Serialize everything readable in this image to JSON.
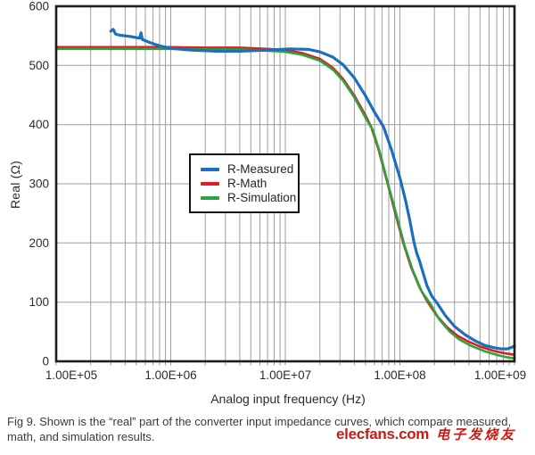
{
  "figure": {
    "caption": "Fig 9. Shown is the “real” part of the converter input impedance curves, which compare measured, math, and simulation results.",
    "watermark": {
      "brand": "elecfans.com",
      "cjk": "电子发烧友",
      "color": "#C81B15"
    }
  },
  "chart_data": {
    "type": "line",
    "title": "",
    "xlabel": "Analog input frequency (Hz)",
    "ylabel": "Real (Ω)",
    "x_scale": "log",
    "xlim": [
      100000.0,
      1000000000.0
    ],
    "ylim": [
      0,
      600
    ],
    "x_tick_labels": [
      "1.00E+05",
      "1.00E+06",
      "1.00E+07",
      "1.00E+08",
      "1.00E+09"
    ],
    "y_ticks": [
      0,
      100,
      200,
      300,
      400,
      500,
      600
    ],
    "grid": true,
    "grid_color": "#9E9E9E",
    "frame_color": "#1C1C1C",
    "legend_position": "center",
    "series": [
      {
        "name": "R-Measured",
        "color": "#1B6FBC",
        "points": [
          [
            300000.0,
            558
          ],
          [
            315000.0,
            561
          ],
          [
            330000.0,
            553
          ],
          [
            360000.0,
            551
          ],
          [
            440000.0,
            549
          ],
          [
            535000.0,
            546
          ],
          [
            550000.0,
            555
          ],
          [
            565000.0,
            544
          ],
          [
            650000.0,
            539
          ],
          [
            800000.0,
            533
          ],
          [
            1000000.0,
            529
          ],
          [
            1500000.0,
            526
          ],
          [
            2500000.0,
            524
          ],
          [
            4000000.0,
            524
          ],
          [
            7000000.0,
            526
          ],
          [
            11000000.0,
            528
          ],
          [
            16000000.0,
            527
          ],
          [
            20000000.0,
            523
          ],
          [
            26000000.0,
            514
          ],
          [
            32000000.0,
            501
          ],
          [
            40000000.0,
            479
          ],
          [
            50000000.0,
            449
          ],
          [
            60000000.0,
            421
          ],
          [
            72000000.0,
            396
          ],
          [
            85000000.0,
            356
          ],
          [
            100000000.0,
            310
          ],
          [
            112000000.0,
            272
          ],
          [
            122000000.0,
            238
          ],
          [
            132000000.0,
            203
          ],
          [
            140000000.0,
            183
          ],
          [
            148000000.0,
            170
          ],
          [
            158000000.0,
            152
          ],
          [
            172000000.0,
            128
          ],
          [
            190000000.0,
            110
          ],
          [
            210000000.0,
            99
          ],
          [
            250000000.0,
            77
          ],
          [
            300000000.0,
            59
          ],
          [
            370000000.0,
            45
          ],
          [
            450000000.0,
            35
          ],
          [
            550000000.0,
            27
          ],
          [
            660000000.0,
            23
          ],
          [
            760000000.0,
            21
          ],
          [
            860000000.0,
            21
          ],
          [
            930000000.0,
            23
          ],
          [
            1000000000.0,
            26
          ]
        ]
      },
      {
        "name": "R-Math",
        "color": "#E01D23",
        "points": [
          [
            100000.0,
            531
          ],
          [
            500000.0,
            531
          ],
          [
            1000000.0,
            531
          ],
          [
            2000000.0,
            530
          ],
          [
            4000000.0,
            530
          ],
          [
            7000000.0,
            528
          ],
          [
            10000000.0,
            526
          ],
          [
            14000000.0,
            521
          ],
          [
            20000000.0,
            511
          ],
          [
            26000000.0,
            496
          ],
          [
            32000000.0,
            477
          ],
          [
            40000000.0,
            449
          ],
          [
            50000000.0,
            416
          ],
          [
            56000000.0,
            397
          ],
          [
            65000000.0,
            358
          ],
          [
            78000000.0,
            301
          ],
          [
            90000000.0,
            254
          ],
          [
            107000000.0,
            200
          ],
          [
            125000000.0,
            159
          ],
          [
            150000000.0,
            123
          ],
          [
            175000000.0,
            100
          ],
          [
            210000000.0,
            77
          ],
          [
            260000000.0,
            57
          ],
          [
            320000000.0,
            43
          ],
          [
            400000000.0,
            33
          ],
          [
            500000000.0,
            25
          ],
          [
            650000000.0,
            18
          ],
          [
            800000000.0,
            14
          ],
          [
            1000000000.0,
            11
          ]
        ]
      },
      {
        "name": "R-Simulation",
        "color": "#2DA33C",
        "points": [
          [
            100000.0,
            528
          ],
          [
            500000.0,
            528
          ],
          [
            1000000.0,
            528
          ],
          [
            2000000.0,
            527
          ],
          [
            4000000.0,
            527
          ],
          [
            7000000.0,
            525
          ],
          [
            10000000.0,
            523
          ],
          [
            14000000.0,
            518
          ],
          [
            20000000.0,
            508
          ],
          [
            26000000.0,
            493
          ],
          [
            32000000.0,
            474
          ],
          [
            40000000.0,
            446
          ],
          [
            50000000.0,
            412
          ],
          [
            58000000.0,
            391
          ],
          [
            67000000.0,
            352
          ],
          [
            80000000.0,
            295
          ],
          [
            93000000.0,
            248
          ],
          [
            110000000.0,
            195
          ],
          [
            130000000.0,
            153
          ],
          [
            155000000.0,
            118
          ],
          [
            186000000.0,
            96
          ],
          [
            220000000.0,
            71
          ],
          [
            270000000.0,
            51
          ],
          [
            330000000.0,
            37
          ],
          [
            420000000.0,
            26
          ],
          [
            550000000.0,
            17
          ],
          [
            700000000.0,
            11
          ],
          [
            850000000.0,
            7
          ],
          [
            1000000000.0,
            5
          ]
        ]
      }
    ]
  }
}
